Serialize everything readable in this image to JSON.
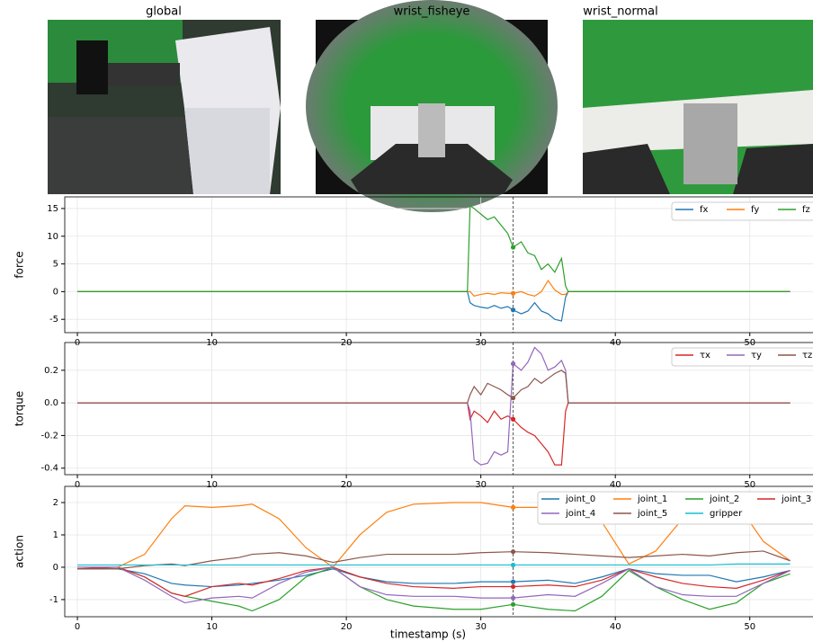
{
  "images": [
    {
      "title": "global"
    },
    {
      "title": "wrist_fisheye"
    },
    {
      "title": "wrist_normal"
    }
  ],
  "chart_data": [
    {
      "type": "line",
      "ylabel": "force",
      "legend": "upper right",
      "legend_ncol": 3,
      "grid": true,
      "cursor_x": 32.4,
      "x": [
        0,
        29,
        29.2,
        29.5,
        30,
        30.5,
        31,
        31.5,
        32,
        32.4,
        33,
        33.5,
        34,
        34.5,
        35,
        35.5,
        36,
        36.3,
        36.5,
        53
      ],
      "series": [
        {
          "name": "fx",
          "color": "#1f77b4",
          "values": [
            0,
            0,
            -2,
            -2.5,
            -2.8,
            -3,
            -2.5,
            -3,
            -2.7,
            -3.3,
            -4,
            -3.5,
            -2,
            -3.5,
            -4,
            -5,
            -5.3,
            -1,
            0,
            0
          ]
        },
        {
          "name": "fy",
          "color": "#ff7f0e",
          "values": [
            0,
            0,
            0,
            -0.8,
            -0.5,
            -0.3,
            -0.5,
            -0.2,
            -0.3,
            -0.3,
            0,
            -0.5,
            -0.8,
            0,
            2,
            0.3,
            -0.5,
            -0.5,
            0,
            0
          ]
        },
        {
          "name": "fz",
          "color": "#2ca02c",
          "values": [
            0,
            0,
            15.5,
            15,
            14,
            13,
            13.5,
            12,
            10.5,
            8,
            9,
            7,
            6.5,
            4,
            5,
            3.5,
            6,
            1,
            0,
            0
          ]
        }
      ],
      "xlim": [
        -0.94,
        55.1
      ],
      "xticks": [
        0,
        10,
        20,
        30,
        40,
        50
      ],
      "ylim": [
        -7.4,
        17.1
      ],
      "yticks": [
        -5,
        0,
        5,
        10,
        15
      ]
    },
    {
      "type": "line",
      "ylabel": "torque",
      "legend": "upper right",
      "legend_ncol": 3,
      "grid": true,
      "cursor_x": 32.4,
      "x": [
        0,
        29,
        29.2,
        29.5,
        30,
        30.5,
        31,
        31.5,
        32,
        32.4,
        33,
        33.5,
        34,
        34.5,
        35,
        35.5,
        36,
        36.3,
        36.5,
        53
      ],
      "series": [
        {
          "name": "τx",
          "color": "#d62728",
          "values": [
            0,
            0,
            -0.1,
            -0.05,
            -0.08,
            -0.12,
            -0.05,
            -0.1,
            -0.08,
            -0.1,
            -0.15,
            -0.18,
            -0.2,
            -0.25,
            -0.3,
            -0.38,
            -0.38,
            -0.05,
            0,
            0
          ]
        },
        {
          "name": "τy",
          "color": "#9467bd",
          "values": [
            0,
            0,
            -0.05,
            -0.35,
            -0.38,
            -0.37,
            -0.3,
            -0.32,
            -0.3,
            0.24,
            0.2,
            0.25,
            0.34,
            0.3,
            0.2,
            0.22,
            0.26,
            0.2,
            0,
            0
          ]
        },
        {
          "name": "τz",
          "color": "#8c564b",
          "values": [
            0,
            0,
            0.05,
            0.1,
            0.05,
            0.12,
            0.1,
            0.08,
            0.05,
            0.03,
            0.08,
            0.1,
            0.15,
            0.12,
            0.15,
            0.18,
            0.2,
            0.18,
            0,
            0
          ]
        }
      ],
      "xlim": [
        -0.94,
        55.1
      ],
      "xticks": [
        0,
        10,
        20,
        30,
        40,
        50
      ],
      "ylim": [
        -0.44,
        0.37
      ],
      "yticks": [
        -0.4,
        -0.2,
        {
          "value": 0,
          "label": "0.0"
        },
        0.2
      ]
    },
    {
      "type": "line",
      "ylabel": "action",
      "xlabel": "timestamp (s)",
      "legend": "upper right",
      "legend_ncol": 4,
      "grid": true,
      "cursor_x": 32.4,
      "x": [
        0,
        3,
        5,
        7,
        8,
        10,
        12,
        13,
        15,
        17,
        19,
        21,
        23,
        25,
        28,
        30,
        32.4,
        35,
        37,
        39,
        41,
        43,
        45,
        47,
        49,
        51,
        53
      ],
      "series": [
        {
          "name": "joint_0",
          "color": "#1f77b4",
          "values": [
            -0.05,
            -0.05,
            -0.2,
            -0.5,
            -0.55,
            -0.6,
            -0.55,
            -0.5,
            -0.4,
            -0.25,
            -0.05,
            -0.3,
            -0.45,
            -0.5,
            -0.5,
            -0.45,
            -0.45,
            -0.4,
            -0.5,
            -0.3,
            -0.05,
            -0.2,
            -0.25,
            -0.25,
            -0.45,
            -0.3,
            -0.1
          ]
        },
        {
          "name": "joint_1",
          "color": "#ff7f0e",
          "values": [
            0,
            0,
            0.4,
            1.5,
            1.9,
            1.85,
            1.9,
            1.95,
            1.5,
            0.6,
            0,
            1.0,
            1.7,
            1.95,
            2,
            2,
            1.85,
            1.85,
            1.75,
            1.4,
            0.1,
            0.5,
            1.5,
            1.95,
            2,
            0.8,
            0.2
          ]
        },
        {
          "name": "joint_2",
          "color": "#2ca02c",
          "values": [
            0,
            0,
            -0.3,
            -0.8,
            -0.9,
            -1.05,
            -1.2,
            -1.35,
            -1.0,
            -0.3,
            0,
            -0.6,
            -1.0,
            -1.2,
            -1.3,
            -1.3,
            -1.15,
            -1.3,
            -1.35,
            -0.9,
            -0.1,
            -0.6,
            -1.0,
            -1.3,
            -1.1,
            -0.5,
            -0.2
          ]
        },
        {
          "name": "joint_3",
          "color": "#d62728",
          "values": [
            -0.05,
            0,
            -0.3,
            -0.8,
            -0.9,
            -0.6,
            -0.5,
            -0.55,
            -0.35,
            -0.1,
            0,
            -0.3,
            -0.5,
            -0.6,
            -0.65,
            -0.6,
            -0.6,
            -0.55,
            -0.6,
            -0.4,
            -0.05,
            -0.3,
            -0.5,
            -0.6,
            -0.65,
            -0.4,
            -0.1
          ]
        },
        {
          "name": "joint_4",
          "color": "#9467bd",
          "values": [
            0,
            0,
            -0.4,
            -0.9,
            -1.1,
            -0.95,
            -0.9,
            -0.95,
            -0.5,
            -0.15,
            0,
            -0.6,
            -0.85,
            -0.9,
            -0.9,
            -0.95,
            -0.95,
            -0.85,
            -0.9,
            -0.5,
            -0.05,
            -0.6,
            -0.85,
            -0.9,
            -0.9,
            -0.5,
            -0.1
          ]
        },
        {
          "name": "joint_5",
          "color": "#8c564b",
          "values": [
            -0.05,
            -0.05,
            0.05,
            0.1,
            0.05,
            0.2,
            0.3,
            0.4,
            0.45,
            0.35,
            0.15,
            0.3,
            0.4,
            0.4,
            0.4,
            0.45,
            0.48,
            0.45,
            0.4,
            0.35,
            0.3,
            0.35,
            0.4,
            0.35,
            0.45,
            0.5,
            0.2
          ]
        },
        {
          "name": "gripper",
          "color": "#17becf",
          "values": [
            0.07,
            0.07,
            0.07,
            0.07,
            0.07,
            0.07,
            0.07,
            0.07,
            0.07,
            0.07,
            0.07,
            0.07,
            0.07,
            0.07,
            0.07,
            0.07,
            0.07,
            0.07,
            0.07,
            0.07,
            0.07,
            0.07,
            0.07,
            0.07,
            0.1,
            0.1,
            0.1
          ]
        }
      ],
      "xlim": [
        -0.94,
        55.1
      ],
      "xticks": [
        0,
        10,
        20,
        30,
        40,
        50
      ],
      "ylim": [
        -1.53,
        2.5
      ],
      "yticks": [
        -1,
        0,
        1,
        2
      ]
    }
  ]
}
